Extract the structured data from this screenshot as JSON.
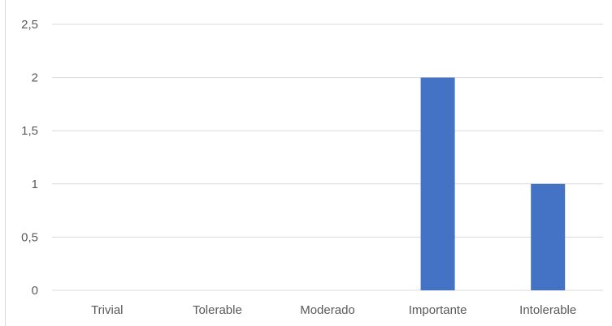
{
  "chart_data": {
    "type": "bar",
    "categories": [
      "Trivial",
      "Tolerable",
      "Moderado",
      "Importante",
      "Intolerable"
    ],
    "values": [
      0,
      0,
      0,
      2,
      1
    ],
    "ylim": [
      0,
      2.5
    ],
    "yticks": [
      "0",
      "0,5",
      "1",
      "1,5",
      "2",
      "2,5"
    ],
    "grid": true,
    "legend": "none",
    "colors": {
      "bar": "#4472c4",
      "grid": "#d9d9d9",
      "text": "#595959"
    }
  }
}
